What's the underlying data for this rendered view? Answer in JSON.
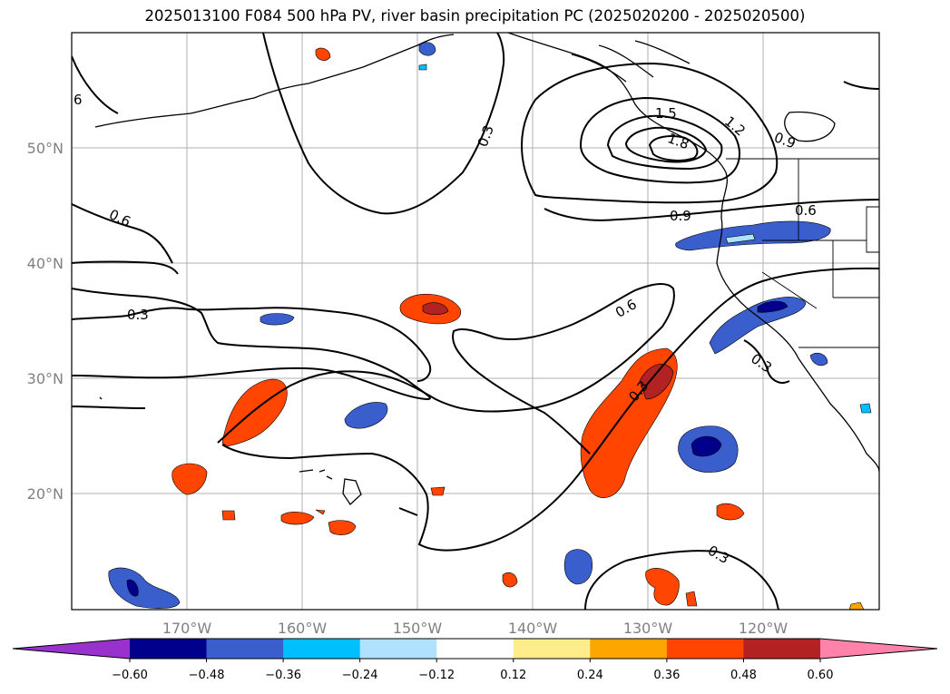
{
  "title": "2025013100 F084 500 hPa PV, river basin precipitation PC (2025020200 - 2025020500)",
  "map": {
    "lon_labels": [
      "170°W",
      "160°W",
      "150°W",
      "140°W",
      "130°W",
      "120°W"
    ],
    "lat_labels": [
      "50°N",
      "40°N",
      "30°N",
      "20°N"
    ],
    "contour_labels": [
      {
        "text": "6"
      },
      {
        "text": "0.3"
      },
      {
        "text": "0.6"
      },
      {
        "text": "0.3"
      },
      {
        "text": "0.6"
      },
      {
        "text": "0.3"
      },
      {
        "text": "0.9"
      },
      {
        "text": "0.6"
      },
      {
        "text": "0.9"
      },
      {
        "text": "1.2"
      },
      {
        "text": "1.5"
      },
      {
        "text": "1.8"
      },
      {
        "text": "0.3"
      },
      {
        "text": "0.3"
      }
    ]
  },
  "colorbar": {
    "ticks": [
      "−0.60",
      "−0.48",
      "−0.36",
      "−0.24",
      "−0.12",
      "0.12",
      "0.24",
      "0.36",
      "0.48",
      "0.60"
    ],
    "colors": [
      "#9932cc",
      "#00008b",
      "#3a5fcd",
      "#00bfff",
      "#b0e2ff",
      "#ffffff",
      "#ffec8b",
      "#ffa500",
      "#ff4500",
      "#b22222",
      "#ff82ab"
    ]
  }
}
